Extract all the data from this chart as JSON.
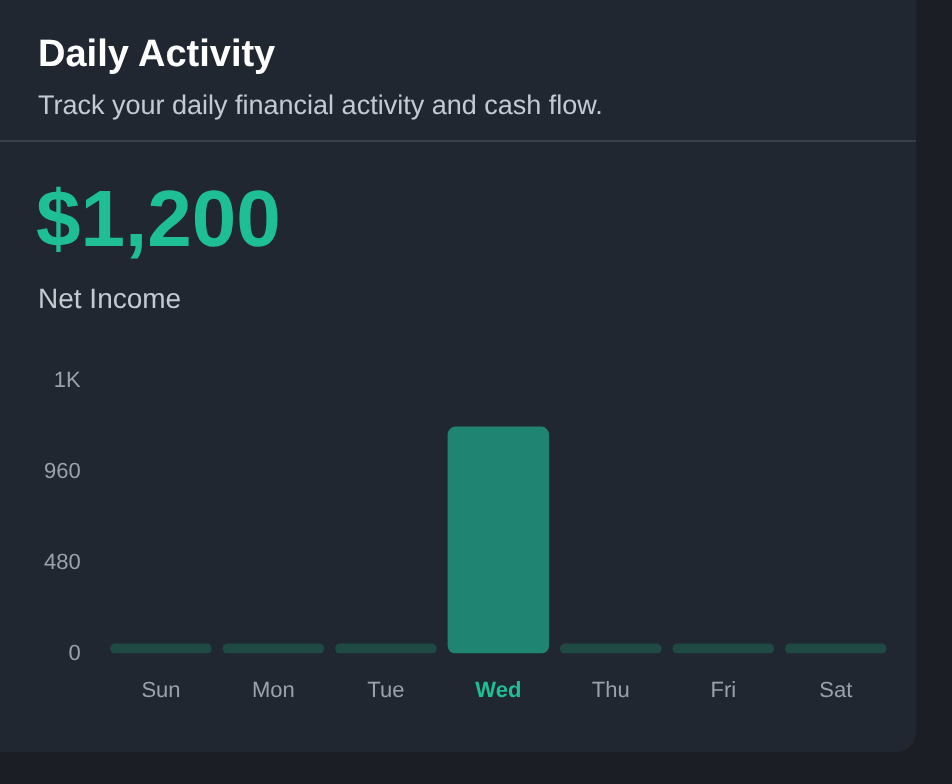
{
  "chart_data": {
    "type": "bar",
    "title": "Daily Activity",
    "subtitle": "Track your daily financial activity and cash flow.",
    "annotations": [
      "$1,200",
      "Net Income"
    ],
    "categories": [
      "Sun",
      "Mon",
      "Tue",
      "Wed",
      "Thu",
      "Fri",
      "Sat"
    ],
    "values": [
      0,
      0,
      0,
      1200,
      0,
      0,
      0
    ],
    "colors": [
      "#1f4a44",
      "#1f4a44",
      "#1f4a44",
      "#1f8472",
      "#1f4a44",
      "#1f4a44",
      "#1f4a44"
    ],
    "ylim": [
      0,
      1440
    ],
    "yticks": [
      0,
      480,
      960,
      {
        "value": 1440,
        "label": "1K"
      }
    ],
    "grid": false,
    "legend": false
  }
}
